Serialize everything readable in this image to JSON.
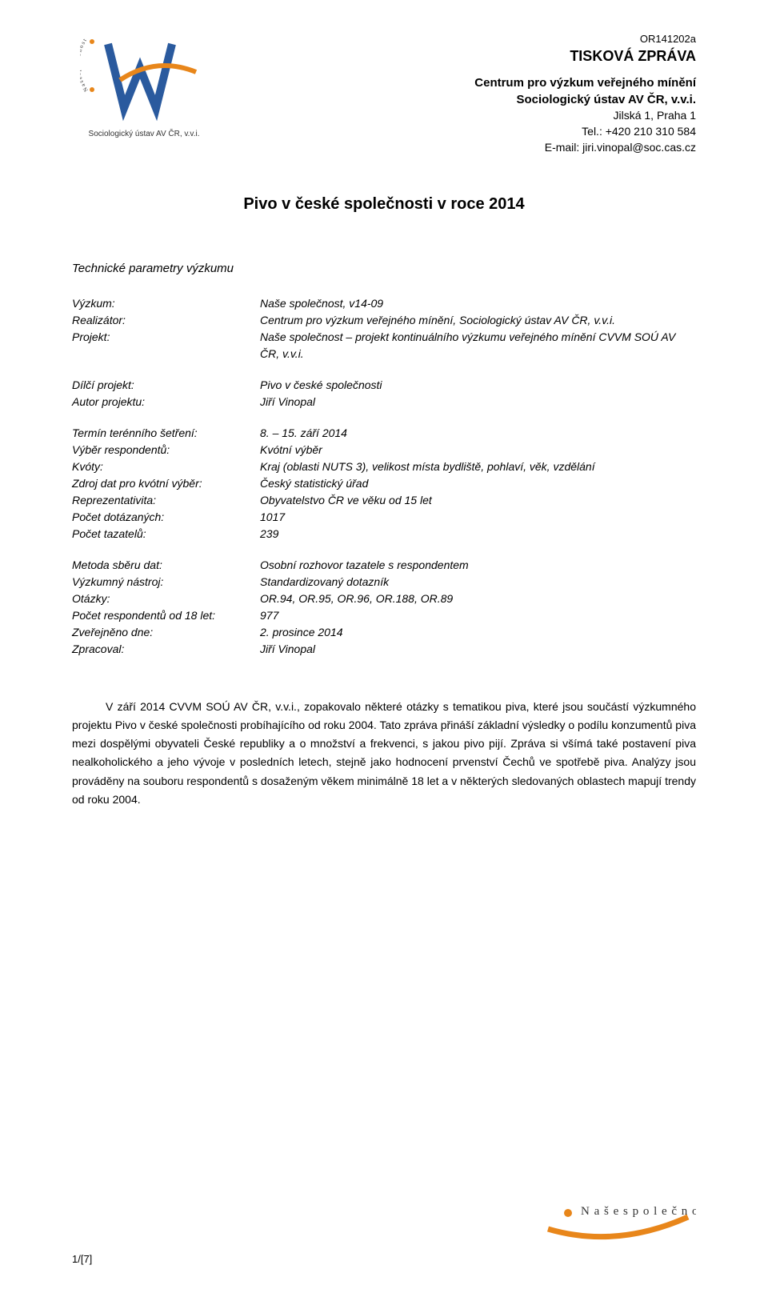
{
  "header": {
    "doc_code": "OR141202a",
    "press_release": "TISKOVÁ ZPRÁVA",
    "org_name_1": "Centrum pro výzkum veřejného mínění",
    "org_name_2": "Sociologický ústav AV ČR, v.v.i.",
    "address": "Jilská 1, Praha 1",
    "tel": "Tel.: +420 210 310 584",
    "email": "E-mail: jiri.vinopal@soc.cas.cz",
    "logo_caption": "Sociologický ústav AV ČR, v.v.i.",
    "logo_arc_text": "Naše společnost"
  },
  "title": "Pivo v české společnosti v roce 2014",
  "subheading": "Technické parametry výzkumu",
  "params": {
    "group1": [
      {
        "label": "Výzkum:",
        "value": "Naše společnost, v14-09"
      },
      {
        "label": "Realizátor:",
        "value": "Centrum pro výzkum veřejného mínění, Sociologický ústav AV ČR, v.v.i."
      },
      {
        "label": "Projekt:",
        "value": "Naše společnost – projekt kontinuálního výzkumu veřejného mínění CVVM SOÚ AV ČR, v.v.i."
      }
    ],
    "group2": [
      {
        "label": "Dílčí projekt:",
        "value": "Pivo v české společnosti"
      },
      {
        "label": "Autor projektu:",
        "value": "Jiří Vinopal"
      }
    ],
    "group3": [
      {
        "label": "Termín terénního šetření:",
        "value": "8. – 15. září 2014"
      },
      {
        "label": "Výběr respondentů:",
        "value": "Kvótní výběr"
      },
      {
        "label": "Kvóty:",
        "value": "Kraj (oblasti NUTS 3), velikost místa bydliště, pohlaví, věk, vzdělání"
      },
      {
        "label": "Zdroj dat pro kvótní výběr:",
        "value": "Český statistický úřad"
      },
      {
        "label": "Reprezentativita:",
        "value": "Obyvatelstvo ČR ve věku od 15 let"
      },
      {
        "label": "Počet dotázaných:",
        "value": "1017"
      },
      {
        "label": "Počet tazatelů:",
        "value": "239"
      }
    ],
    "group4": [
      {
        "label": "Metoda sběru dat:",
        "value": "Osobní rozhovor tazatele s respondentem"
      },
      {
        "label": "Výzkumný nástroj:",
        "value": "Standardizovaný dotazník"
      },
      {
        "label": "Otázky:",
        "value": "OR.94, OR.95, OR.96, OR.188, OR.89"
      },
      {
        "label": "Počet respondentů od 18 let:",
        "value": "977"
      },
      {
        "label": "Zveřejněno dne:",
        "value": "2. prosince 2014"
      },
      {
        "label": "Zpracoval:",
        "value": "Jiří Vinopal"
      }
    ]
  },
  "body_text": "V září 2014 CVVM SOÚ AV ČR, v.v.i., zopakovalo některé otázky s tematikou piva, které jsou součástí výzkumného projektu Pivo v české společnosti probíhajícího od roku 2004. Tato zpráva přináší základní výsledky o podílu konzumentů piva mezi dospělými obyvateli České republiky a o množství a frekvenci, s jakou pivo pijí. Zpráva si všímá také postavení piva nealkoholického a jeho vývoje v posledních letech, stejně jako hodnocení prvenství Čechů ve spotřebě piva. Analýzy jsou prováděny na souboru respondentů s dosaženým věkem minimálně 18 let a v některých sledovaných oblastech mapují trendy od roku 2004.",
  "footer": {
    "page_num": "1/[7]",
    "footer_text": "Naše společnost"
  },
  "colors": {
    "logo_blue": "#2a5a9e",
    "logo_orange": "#e8861a",
    "text": "#000000",
    "bg": "#ffffff"
  }
}
